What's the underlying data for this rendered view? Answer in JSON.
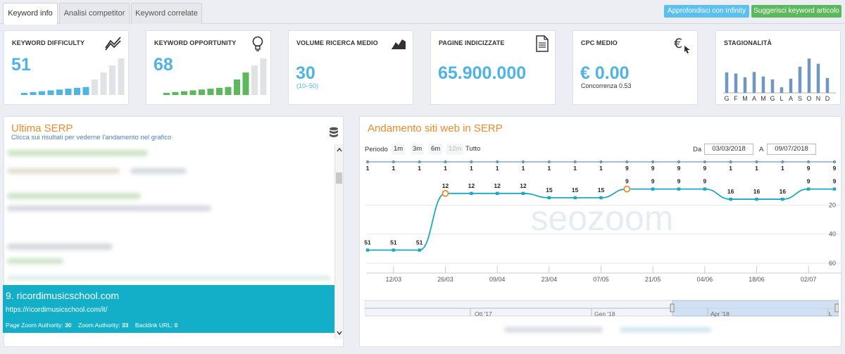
{
  "tabs": [
    {
      "label": "Keyword info",
      "active": true
    },
    {
      "label": "Analisi competitor",
      "active": false
    },
    {
      "label": "Keyword correlate",
      "active": false
    }
  ],
  "actions": {
    "deepen": {
      "label": "Approfondisci con Infinity",
      "color": "#5bc0f0"
    },
    "suggest": {
      "label": "Suggerisci keyword articolo",
      "color": "#5cb85c"
    }
  },
  "cards": {
    "difficulty": {
      "title": "KEYWORD DIFFICULTY",
      "value": "51",
      "icon": "trend-lines-icon",
      "bar_levels": [
        1,
        2,
        3,
        4,
        5,
        6,
        7,
        8,
        9,
        10,
        11,
        12
      ],
      "active_bars": 8,
      "accent": "#4fb4e3"
    },
    "opportunity": {
      "title": "KEYWORD OPPORTUNITY",
      "value": "68",
      "icon": "lightbulb-icon",
      "bar_levels": [
        1,
        2,
        3,
        4,
        5,
        6,
        7,
        8,
        9,
        10,
        11,
        12
      ],
      "active_bars": 10,
      "accent": "#5cb85c"
    },
    "volume": {
      "title": "VOLUME RICERCA MEDIO",
      "value": "30",
      "range": "(10–50)",
      "icon": "area-chart-icon"
    },
    "pages": {
      "title": "PAGINE INDICIZZATE",
      "value": "65.900.000",
      "icon": "document-icon"
    },
    "cpc": {
      "title": "CPC MEDIO",
      "value": "€ 0.00",
      "competition": "Concorrenza 0.53",
      "icon": "euro-cursor-icon"
    },
    "seasonality": {
      "title": "STAGIONALITÀ",
      "months": [
        "G",
        "F",
        "M",
        "A",
        "M",
        "G",
        "L",
        "A",
        "S",
        "O",
        "N",
        "D"
      ],
      "values": [
        55,
        52,
        42,
        56,
        44,
        36,
        15,
        38,
        70,
        92,
        78,
        40
      ]
    }
  },
  "serp": {
    "title": "Ultima SERP",
    "subtitle": "Clicca sui risultati per vederne l'andamento nel grafico",
    "db_icon": "database-icon",
    "selected": {
      "title": "9. ricordimusicschool.com",
      "url": "https://ricordimusicschool.com/it/",
      "pza_label": "Page Zoom Authority:",
      "pza": "30",
      "za_label": "Zoom Authority:",
      "za": "33",
      "bl_label": "Backlink URL:",
      "bl": "0"
    }
  },
  "trend": {
    "title": "Andamento siti web in SERP",
    "period_label": "Periodo",
    "ranges": [
      "1m",
      "3m",
      "6m",
      "12m",
      "Tutto"
    ],
    "from_label": "Da",
    "from": "03/03/2018",
    "to_label": "A",
    "to": "09/07/2018",
    "watermark": "seozoom",
    "navigator_labels": [
      "Ott '17",
      "Gen '18",
      "Apr '18",
      "L"
    ]
  },
  "chart_data": {
    "type": "line",
    "x": [
      "05/03",
      "12/03",
      "19/03",
      "26/03",
      "02/04",
      "09/04",
      "16/04",
      "23/04",
      "30/04",
      "07/05",
      "14/05",
      "21/05",
      "28/05",
      "04/06",
      "11/06",
      "18/06",
      "25/06",
      "02/07",
      "09/07"
    ],
    "series": [
      {
        "values": [
          51,
          51,
          51,
          12,
          12,
          12,
          12,
          15,
          15,
          15,
          9,
          9,
          9,
          9,
          16,
          16,
          16,
          9,
          9
        ]
      }
    ],
    "top_flags": [
      "1",
      "1",
      "1",
      "1",
      "1",
      "1",
      "1",
      "1",
      "1",
      "1",
      "9",
      "9",
      "9",
      "9",
      "1",
      "1",
      "1",
      "9",
      "9"
    ],
    "xticks": [
      "12/03",
      "26/03",
      "09/04",
      "23/04",
      "07/05",
      "21/05",
      "04/06",
      "18/06",
      "02/07"
    ],
    "yticks": [
      "20",
      "40",
      "60"
    ],
    "ylim": [
      0,
      60
    ],
    "reversed_y": true,
    "line_color": "#1ba9bd",
    "marker_color": "#f08a2a"
  }
}
